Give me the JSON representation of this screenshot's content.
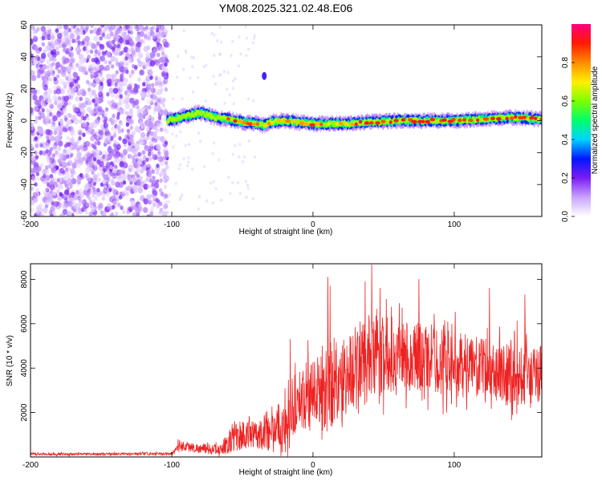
{
  "title": "YM08.2025.321.02.48.E06",
  "chart_data": [
    {
      "type": "heatmap",
      "name": "spectrogram",
      "xlabel": "Height of straight line (km)",
      "ylabel": "Frequency (Hz)",
      "xlim": [
        -200,
        162
      ],
      "ylim": [
        -60,
        60
      ],
      "xticks": [
        -200,
        -100,
        0,
        100
      ],
      "yticks": [
        -60,
        -40,
        -20,
        0,
        20,
        40,
        60
      ],
      "noise_region_x": [
        -200,
        -103
      ],
      "signal_ridge": {
        "x_start": -103,
        "x_end": 162,
        "freq_points": [
          [
            -103,
            0
          ],
          [
            -90,
            3
          ],
          [
            -80,
            5
          ],
          [
            -70,
            2
          ],
          [
            -60,
            1
          ],
          [
            -50,
            -1
          ],
          [
            -40,
            -2
          ],
          [
            -35,
            -3
          ],
          [
            -30,
            -1
          ],
          [
            -20,
            0
          ],
          [
            -10,
            -1
          ],
          [
            0,
            -2
          ],
          [
            20,
            -2
          ],
          [
            40,
            -1
          ],
          [
            60,
            0
          ],
          [
            80,
            0
          ],
          [
            100,
            0
          ],
          [
            120,
            1
          ],
          [
            140,
            2
          ],
          [
            162,
            1
          ]
        ],
        "peak_amplitude": 0.95
      },
      "colorbar": {
        "label": "Normalized spectral amplitude",
        "ticks": [
          "0.0",
          "0.2",
          "0.4",
          "0.6",
          "0.8"
        ],
        "range": [
          0,
          1
        ],
        "colors": [
          "#ffffff",
          "#c9a3ff",
          "#7a1cf2",
          "#0016ff",
          "#00d4ff",
          "#00ff6a",
          "#7fff00",
          "#ffef00",
          "#ff8c00",
          "#ff1a00",
          "#ff0080"
        ]
      }
    },
    {
      "type": "line",
      "name": "snr",
      "xlabel": "Height of straight line (km)",
      "ylabel": "SNR (10 * v/v)",
      "xlim": [
        -200,
        162
      ],
      "ylim": [
        0,
        8700
      ],
      "xticks": [
        -200,
        -100,
        0,
        100
      ],
      "yticks": [
        2000,
        4000,
        6000,
        8000
      ],
      "color": "#ee2222",
      "envelope": [
        {
          "x": -200,
          "base": 120,
          "amp": 120
        },
        {
          "x": -100,
          "base": 130,
          "amp": 120
        },
        {
          "x": -95,
          "base": 500,
          "amp": 500
        },
        {
          "x": -80,
          "base": 350,
          "amp": 400
        },
        {
          "x": -65,
          "base": 300,
          "amp": 500
        },
        {
          "x": -55,
          "base": 900,
          "amp": 1500
        },
        {
          "x": -40,
          "base": 900,
          "amp": 1200
        },
        {
          "x": -30,
          "base": 1200,
          "amp": 2000
        },
        {
          "x": -18,
          "base": 1300,
          "amp": 2500
        },
        {
          "x": -10,
          "base": 2500,
          "amp": 2500
        },
        {
          "x": 0,
          "base": 2700,
          "amp": 3500
        },
        {
          "x": 10,
          "base": 3000,
          "amp": 4500
        },
        {
          "x": 25,
          "base": 3600,
          "amp": 3500
        },
        {
          "x": 40,
          "base": 4200,
          "amp": 4000
        },
        {
          "x": 60,
          "base": 4500,
          "amp": 3300
        },
        {
          "x": 80,
          "base": 4300,
          "amp": 3200
        },
        {
          "x": 100,
          "base": 4000,
          "amp": 3000
        },
        {
          "x": 120,
          "base": 3900,
          "amp": 2600
        },
        {
          "x": 140,
          "base": 3600,
          "amp": 3000
        },
        {
          "x": 162,
          "base": 3500,
          "amp": 2500
        }
      ],
      "peaks": [
        {
          "x": 10.5,
          "y": 8100
        },
        {
          "x": 41.5,
          "y": 8650
        },
        {
          "x": 75,
          "y": 8000
        },
        {
          "x": 37,
          "y": 7900
        },
        {
          "x": 125,
          "y": 7600
        },
        {
          "x": 150,
          "y": 7300
        },
        {
          "x": 12,
          "y": 7700
        },
        {
          "x": 52,
          "y": 7100
        },
        {
          "x": -16,
          "y": 5300
        }
      ]
    }
  ]
}
